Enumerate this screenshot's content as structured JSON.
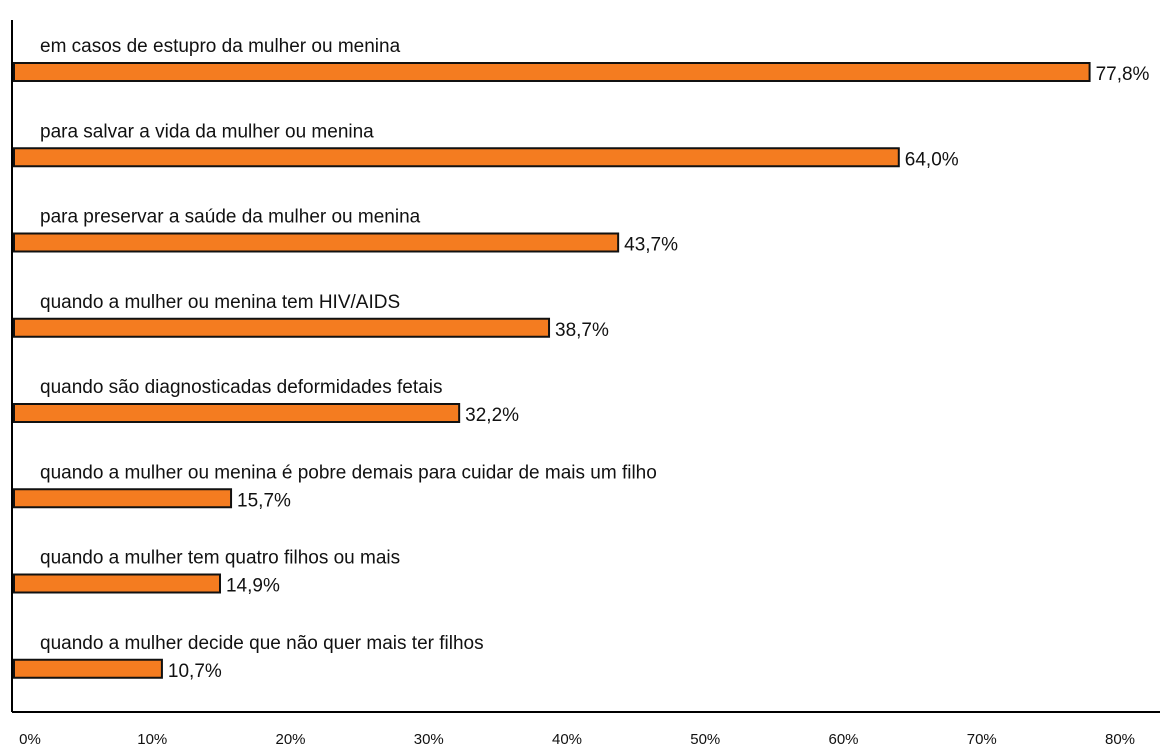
{
  "chart_data": {
    "type": "hbar",
    "categories": [
      "em casos de estupro da mulher ou menina",
      "para salvar a vida da mulher ou menina",
      "para preservar a saúde da mulher ou menina",
      "quando a mulher ou menina tem HIV/AIDS",
      "quando são diagnosticadas deformidades fetais",
      "quando a mulher ou menina é pobre demais para cuidar de mais um filho",
      "quando a mulher tem quatro filhos ou mais",
      "quando a mulher decide que não quer mais ter filhos"
    ],
    "values": [
      77.8,
      64.0,
      43.7,
      38.7,
      32.2,
      15.7,
      14.9,
      10.7
    ],
    "value_labels": [
      "77,8%",
      "64,0%",
      "43,7%",
      "38,7%",
      "32,2%",
      "15,7%",
      "14,9%",
      "10,7%"
    ],
    "color": "#f47c20",
    "xlim": [
      0,
      80
    ],
    "xticks": [
      {
        "value": 0,
        "label": "0%"
      },
      {
        "value": 10,
        "label": "10%"
      },
      {
        "value": 20,
        "label": "20%"
      },
      {
        "value": 30,
        "label": "30%"
      },
      {
        "value": 40,
        "label": "40%"
      },
      {
        "value": 50,
        "label": "50%"
      },
      {
        "value": 60,
        "label": "60%"
      },
      {
        "value": 70,
        "label": "70%"
      },
      {
        "value": 80,
        "label": "80%"
      }
    ]
  }
}
